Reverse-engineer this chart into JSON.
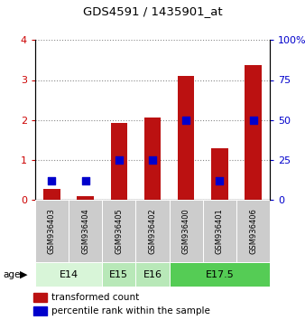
{
  "title": "GDS4591 / 1435901_at",
  "samples": [
    "GSM936403",
    "GSM936404",
    "GSM936405",
    "GSM936402",
    "GSM936400",
    "GSM936401",
    "GSM936406"
  ],
  "transformed_counts": [
    0.27,
    0.1,
    1.93,
    2.07,
    3.1,
    1.3,
    3.38
  ],
  "percentile_ranks_pct": [
    12,
    12,
    25,
    25,
    50,
    12,
    50
  ],
  "age_groups": [
    {
      "label": "E14",
      "start": 0,
      "end": 2,
      "color": "#d8f5d8"
    },
    {
      "label": "E15",
      "start": 2,
      "end": 3,
      "color": "#b8e8b8"
    },
    {
      "label": "E16",
      "start": 3,
      "end": 4,
      "color": "#b8e8b8"
    },
    {
      "label": "E17.5",
      "start": 4,
      "end": 7,
      "color": "#55cc55"
    }
  ],
  "bar_color": "#bb1111",
  "dot_color": "#0000cc",
  "ylim_left": [
    0,
    4
  ],
  "ylim_right": [
    0,
    100
  ],
  "yticks_left": [
    0,
    1,
    2,
    3,
    4
  ],
  "yticks_right": [
    0,
    25,
    50,
    75,
    100
  ],
  "ylabel_left_color": "#cc0000",
  "ylabel_right_color": "#0000cc",
  "legend_tc": "transformed count",
  "legend_pr": "percentile rank within the sample",
  "bar_width": 0.5,
  "dot_size": 40,
  "sample_cell_color": "#cccccc",
  "grid_color": "#888888"
}
